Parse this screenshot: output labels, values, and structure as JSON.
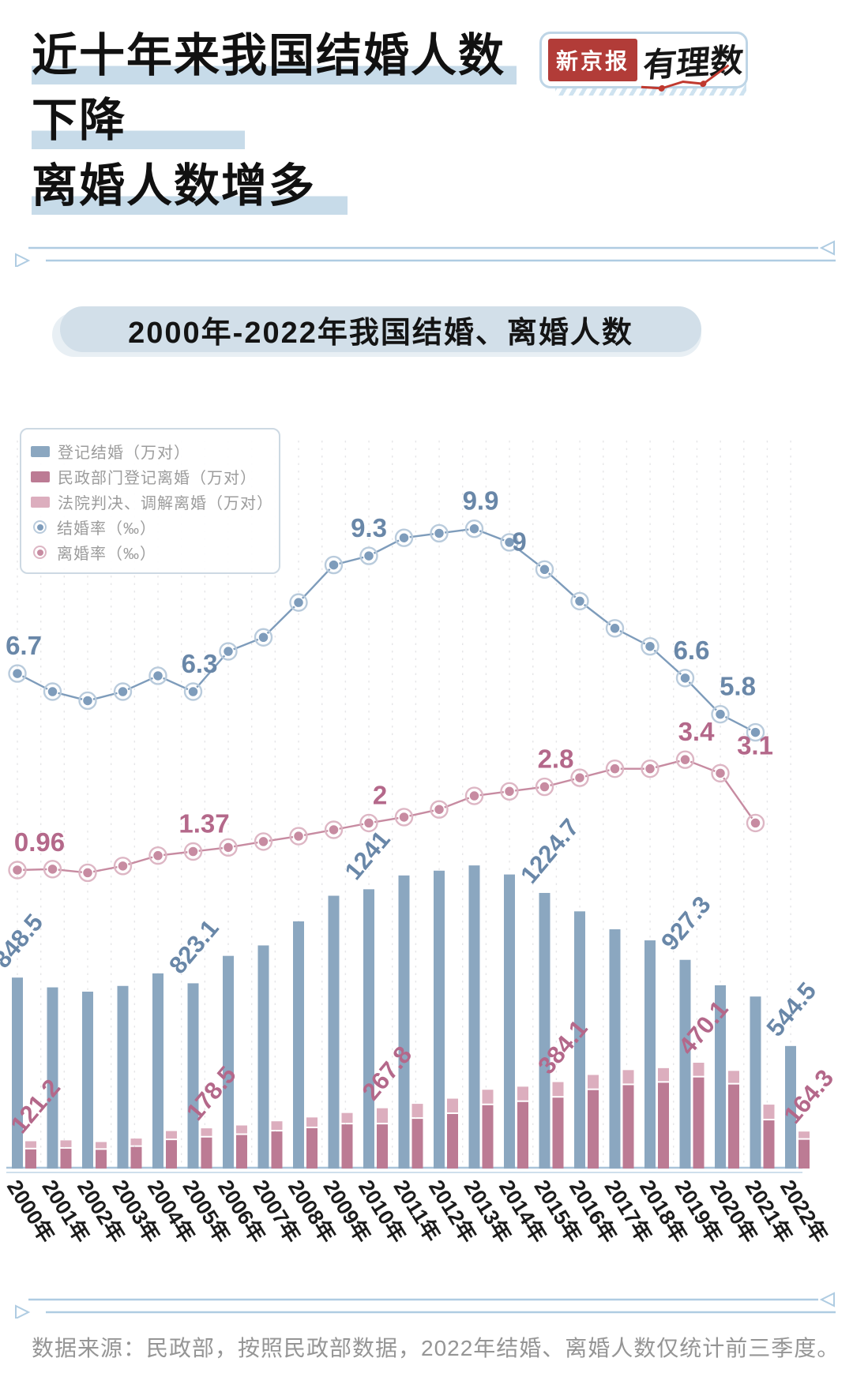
{
  "header": {
    "title_lines": [
      "近十年来我国结婚人数",
      "下降",
      "离婚人数增多"
    ],
    "logo": {
      "brand": "新京报",
      "sub_brand": "有理数"
    }
  },
  "section_title": "2000年-2022年我国结婚、离婚人数",
  "footer": {
    "source_note": "数据来源：民政部，按照民政部数据，2022年结婚、离婚人数仅统计前三季度。"
  },
  "colors": {
    "title_highlight": "#C7DBE9",
    "brand_red": "#B23C38",
    "divider_blue": "#AFCCE2",
    "marriage_bar": "#8BA7C0",
    "divorce_civil_bar": "#BC7B94",
    "divorce_court_bar": "#DCAEBE",
    "marriage_line": "#7E9CBB",
    "marriage_ring": "#B9CBDC",
    "divorce_line": "#C78BA1",
    "divorce_ring": "#DDB6C4",
    "blue_label": "#6987A8",
    "pink_label": "#B4688A",
    "axis_line": "#A9C4DA",
    "year_label": "#1C1C1C"
  },
  "chart_data": {
    "type": "composite bar+line",
    "title": "2000年-2022年我国结婚、离婚人数",
    "categories": [
      "2000年",
      "2001年",
      "2002年",
      "2003年",
      "2004年",
      "2005年",
      "2006年",
      "2007年",
      "2008年",
      "2009年",
      "2010年",
      "2011年",
      "2012年",
      "2013年",
      "2014年",
      "2015年",
      "2016年",
      "2017年",
      "2018年",
      "2019年",
      "2020年",
      "2021年",
      "2022年"
    ],
    "series": [
      {
        "name": "登记结婚（万对）",
        "type": "bar",
        "color": "#8BA7C0",
        "values": [
          848.5,
          805.0,
          786.0,
          811.4,
          867.2,
          823.1,
          945.0,
          991.4,
          1098.3,
          1212.2,
          1241.0,
          1302.4,
          1323.6,
          1346.9,
          1306.7,
          1224.7,
          1142.8,
          1063.1,
          1013.9,
          927.3,
          814.3,
          764.3,
          544.5
        ]
      },
      {
        "name": "民政部门登记离婚（万对）",
        "type": "bar",
        "stack": "divorce",
        "color": "#BC7B94",
        "values": [
          85.0,
          88.0,
          83.0,
          96.0,
          126.0,
          137.7,
          148.9,
          164.6,
          179.2,
          196.1,
          196.1,
          220.7,
          242.3,
          281.5,
          295.7,
          314.9,
          348.6,
          370.4,
          381.2,
          404.7,
          373.3,
          213.9,
          127.8
        ]
      },
      {
        "name": "法院判决、调解离婚（万对）",
        "type": "bar",
        "stack": "divorce",
        "color": "#DCAEBE",
        "values": [
          36.2,
          37.0,
          34.7,
          37.1,
          40.5,
          40.8,
          42.4,
          45.2,
          47.7,
          50.7,
          71.7,
          66.7,
          68.1,
          68.5,
          68.0,
          69.2,
          67.2,
          67.0,
          64.9,
          65.4,
          60.6,
          70.0,
          36.5
        ]
      },
      {
        "name": "结婚率（‰）",
        "type": "line",
        "color": "#7E9CBB",
        "ring": "#B9CBDC",
        "values": [
          6.7,
          6.3,
          6.1,
          6.3,
          6.65,
          6.3,
          7.19,
          7.5,
          8.27,
          9.1,
          9.3,
          9.7,
          9.8,
          9.9,
          9.6,
          9.0,
          8.3,
          7.7,
          7.3,
          6.6,
          5.8,
          5.4
        ]
      },
      {
        "name": "离婚率（‰）",
        "type": "line",
        "color": "#C78BA1",
        "ring": "#DDB6C4",
        "values": [
          0.96,
          0.98,
          0.9,
          1.05,
          1.28,
          1.37,
          1.46,
          1.59,
          1.71,
          1.85,
          2.0,
          2.13,
          2.3,
          2.6,
          2.7,
          2.8,
          3.0,
          3.2,
          3.2,
          3.4,
          3.1,
          2.0
        ]
      }
    ],
    "bar_value_labels": {
      "marriage": [
        {
          "year": "2000年",
          "text": "848.5"
        },
        {
          "year": "2005年",
          "text": "823.1"
        },
        {
          "year": "2010年",
          "text": "1241"
        },
        {
          "year": "2015年",
          "text": "1224.7"
        },
        {
          "year": "2019年",
          "text": "927.3"
        },
        {
          "year": "2022年",
          "text": "544.5"
        }
      ],
      "divorce_total": [
        {
          "year": "2000年",
          "text": "121.2"
        },
        {
          "year": "2005年",
          "text": "178.5"
        },
        {
          "year": "2010年",
          "text": "267.8"
        },
        {
          "year": "2015年",
          "text": "384.1"
        },
        {
          "year": "2019年",
          "text": "470.1"
        },
        {
          "year": "2022年",
          "text": "164.3"
        }
      ]
    },
    "line_value_labels": {
      "marriage_rate": [
        {
          "year": "2000年",
          "text": "6.7"
        },
        {
          "year": "2005年",
          "text": "6.3"
        },
        {
          "year": "2010年",
          "text": "9.3"
        },
        {
          "year": "2013年",
          "text": "9.9"
        },
        {
          "year": "2015年",
          "text": "9"
        },
        {
          "year": "2019年",
          "text": "6.6"
        },
        {
          "year": "2020年",
          "text": "5.8"
        }
      ],
      "divorce_rate": [
        {
          "year": "2000年",
          "text": "0.96"
        },
        {
          "year": "2005年",
          "text": "1.37"
        },
        {
          "year": "2010年",
          "text": "2"
        },
        {
          "year": "2015年",
          "text": "2.8"
        },
        {
          "year": "2019年",
          "text": "3.4"
        },
        {
          "year": "2020年",
          "text": "3.1"
        }
      ]
    },
    "layout_hints": {
      "grid": "vertical-dashed",
      "legend_position": "top-left",
      "x_tick_rotation": "diagonal"
    }
  }
}
